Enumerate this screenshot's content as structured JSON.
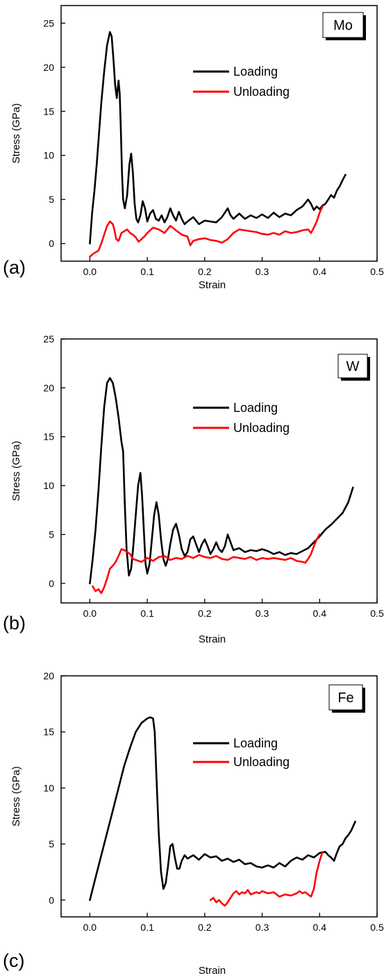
{
  "chart_data": [
    {
      "type": "line",
      "panel_label": "(a)",
      "tag": "Mo",
      "xlabel": "Strain",
      "ylabel": "Stress (GPa)",
      "xlim": [
        -0.05,
        0.5
      ],
      "ylim": [
        -2,
        27
      ],
      "xticks": [
        "0.0",
        "0.1",
        "0.2",
        "0.3",
        "0.4",
        "0.5"
      ],
      "yticks": [
        "0",
        "5",
        "10",
        "15",
        "20",
        "25"
      ],
      "legend": [
        "Loading",
        "Unloading"
      ],
      "series": [
        {
          "name": "Loading",
          "color": "#000000",
          "x": [
            0.0,
            0.004,
            0.008,
            0.012,
            0.016,
            0.02,
            0.025,
            0.03,
            0.035,
            0.038,
            0.041,
            0.044,
            0.047,
            0.05,
            0.052,
            0.054,
            0.056,
            0.058,
            0.061,
            0.065,
            0.069,
            0.072,
            0.075,
            0.078,
            0.081,
            0.084,
            0.088,
            0.092,
            0.096,
            0.1,
            0.105,
            0.11,
            0.115,
            0.12,
            0.125,
            0.13,
            0.135,
            0.14,
            0.145,
            0.15,
            0.155,
            0.16,
            0.165,
            0.17,
            0.18,
            0.19,
            0.2,
            0.21,
            0.22,
            0.23,
            0.24,
            0.245,
            0.25,
            0.26,
            0.27,
            0.28,
            0.29,
            0.3,
            0.31,
            0.32,
            0.33,
            0.34,
            0.35,
            0.36,
            0.37,
            0.38,
            0.385,
            0.39,
            0.395,
            0.4,
            0.405,
            0.41,
            0.415,
            0.42,
            0.425,
            0.43,
            0.435,
            0.44,
            0.445
          ],
          "y": [
            0.0,
            3.5,
            6.0,
            9.0,
            12.5,
            16.0,
            19.5,
            22.5,
            24.0,
            23.5,
            21.0,
            18.0,
            16.5,
            18.5,
            17.0,
            13.0,
            8.0,
            5.0,
            4.0,
            5.5,
            9.0,
            10.2,
            8.0,
            4.5,
            2.8,
            2.4,
            3.2,
            4.8,
            4.0,
            2.5,
            3.4,
            3.8,
            2.8,
            2.6,
            3.2,
            2.4,
            3.0,
            4.0,
            3.2,
            2.6,
            3.6,
            2.8,
            2.2,
            2.5,
            3.0,
            2.2,
            2.6,
            2.5,
            2.4,
            3.0,
            4.0,
            3.2,
            2.8,
            3.4,
            2.8,
            3.2,
            2.9,
            3.3,
            2.9,
            3.5,
            3.0,
            3.4,
            3.2,
            3.8,
            4.2,
            5.0,
            4.5,
            3.8,
            4.2,
            3.9,
            4.3,
            4.5,
            5.0,
            5.5,
            5.2,
            6.0,
            6.5,
            7.2,
            7.8
          ]
        },
        {
          "name": "Unloading",
          "color": "#ff0000",
          "x": [
            0.0,
            0.005,
            0.01,
            0.015,
            0.02,
            0.025,
            0.03,
            0.035,
            0.04,
            0.043,
            0.046,
            0.05,
            0.055,
            0.06,
            0.065,
            0.07,
            0.075,
            0.08,
            0.085,
            0.09,
            0.095,
            0.1,
            0.105,
            0.11,
            0.12,
            0.13,
            0.14,
            0.15,
            0.16,
            0.17,
            0.175,
            0.18,
            0.19,
            0.2,
            0.21,
            0.22,
            0.23,
            0.24,
            0.25,
            0.26,
            0.27,
            0.28,
            0.29,
            0.3,
            0.31,
            0.32,
            0.33,
            0.34,
            0.35,
            0.36,
            0.37,
            0.38,
            0.385,
            0.39,
            0.395,
            0.4,
            0.405
          ],
          "y": [
            -1.5,
            -1.2,
            -1.0,
            -0.8,
            0.0,
            1.0,
            2.0,
            2.5,
            2.2,
            1.5,
            0.5,
            0.3,
            1.2,
            1.4,
            1.6,
            1.2,
            1.0,
            0.7,
            0.2,
            0.5,
            0.8,
            1.2,
            1.5,
            1.8,
            1.6,
            1.2,
            2.0,
            1.5,
            1.0,
            0.8,
            -0.2,
            0.3,
            0.5,
            0.6,
            0.4,
            0.3,
            0.1,
            0.5,
            1.2,
            1.6,
            1.5,
            1.4,
            1.3,
            1.1,
            1.0,
            1.2,
            1.0,
            1.4,
            1.2,
            1.3,
            1.5,
            1.6,
            1.2,
            1.8,
            2.5,
            3.5,
            4.2
          ]
        }
      ]
    },
    {
      "type": "line",
      "panel_label": "(b)",
      "tag": "W",
      "xlabel": "Strain",
      "ylabel": "Stress (GPa)",
      "xlim": [
        -0.05,
        0.5
      ],
      "ylim": [
        -2,
        25
      ],
      "xticks": [
        "0.0",
        "0.1",
        "0.2",
        "0.3",
        "0.4",
        "0.5"
      ],
      "yticks": [
        "0",
        "5",
        "10",
        "15",
        "20",
        "25"
      ],
      "legend": [
        "Loading",
        "Unloading"
      ],
      "series": [
        {
          "name": "Loading",
          "color": "#000000",
          "x": [
            0.0,
            0.005,
            0.01,
            0.015,
            0.02,
            0.025,
            0.03,
            0.035,
            0.04,
            0.045,
            0.05,
            0.055,
            0.058,
            0.061,
            0.064,
            0.068,
            0.072,
            0.076,
            0.08,
            0.084,
            0.088,
            0.091,
            0.094,
            0.097,
            0.1,
            0.104,
            0.108,
            0.112,
            0.116,
            0.12,
            0.124,
            0.128,
            0.132,
            0.136,
            0.14,
            0.145,
            0.15,
            0.155,
            0.16,
            0.165,
            0.17,
            0.175,
            0.18,
            0.185,
            0.19,
            0.195,
            0.2,
            0.205,
            0.21,
            0.215,
            0.22,
            0.225,
            0.23,
            0.235,
            0.24,
            0.245,
            0.25,
            0.26,
            0.27,
            0.28,
            0.29,
            0.3,
            0.31,
            0.32,
            0.33,
            0.34,
            0.35,
            0.36,
            0.37,
            0.38,
            0.39,
            0.4,
            0.41,
            0.42,
            0.43,
            0.44,
            0.45,
            0.458
          ],
          "y": [
            0.0,
            2.5,
            5.5,
            9.5,
            14.0,
            18.0,
            20.5,
            21.0,
            20.5,
            19.0,
            17.0,
            14.5,
            13.5,
            8.0,
            3.5,
            0.8,
            1.5,
            4.0,
            7.0,
            10.0,
            11.3,
            9.0,
            5.5,
            2.0,
            1.0,
            2.0,
            4.5,
            7.0,
            8.3,
            7.0,
            4.5,
            2.5,
            1.8,
            2.5,
            4.0,
            5.5,
            6.1,
            5.0,
            3.5,
            2.8,
            3.2,
            4.5,
            4.8,
            4.0,
            3.2,
            4.0,
            4.5,
            3.8,
            3.0,
            3.5,
            4.2,
            3.5,
            3.2,
            3.8,
            5.0,
            4.2,
            3.4,
            3.6,
            3.2,
            3.4,
            3.3,
            3.5,
            3.3,
            3.0,
            3.2,
            2.9,
            3.1,
            3.0,
            3.3,
            3.6,
            4.2,
            4.8,
            5.5,
            6.0,
            6.6,
            7.2,
            8.3,
            9.8
          ]
        },
        {
          "name": "Unloading",
          "color": "#ff0000",
          "x": [
            0.005,
            0.01,
            0.015,
            0.02,
            0.025,
            0.03,
            0.035,
            0.04,
            0.045,
            0.05,
            0.055,
            0.06,
            0.065,
            0.07,
            0.075,
            0.08,
            0.09,
            0.1,
            0.11,
            0.12,
            0.13,
            0.14,
            0.15,
            0.16,
            0.17,
            0.18,
            0.19,
            0.2,
            0.21,
            0.22,
            0.23,
            0.24,
            0.25,
            0.26,
            0.27,
            0.28,
            0.29,
            0.3,
            0.31,
            0.32,
            0.33,
            0.34,
            0.35,
            0.36,
            0.37,
            0.375,
            0.38,
            0.385,
            0.39,
            0.395,
            0.4
          ],
          "y": [
            -0.3,
            -0.8,
            -0.6,
            -1.0,
            -0.4,
            0.5,
            1.5,
            1.8,
            2.2,
            2.8,
            3.5,
            3.4,
            3.2,
            3.0,
            2.5,
            2.4,
            2.2,
            2.6,
            2.3,
            2.7,
            2.8,
            2.4,
            2.6,
            2.5,
            2.8,
            2.6,
            2.9,
            2.7,
            2.6,
            2.8,
            2.5,
            2.4,
            2.7,
            2.6,
            2.5,
            2.7,
            2.4,
            2.6,
            2.5,
            2.6,
            2.5,
            2.4,
            2.6,
            2.3,
            2.2,
            2.1,
            2.5,
            3.0,
            3.8,
            4.5,
            5.0
          ]
        }
      ]
    },
    {
      "type": "line",
      "panel_label": "(c)",
      "tag": "Fe",
      "xlabel": "Strain",
      "ylabel": "Stress (GPa)",
      "xlim": [
        -0.05,
        0.5
      ],
      "ylim": [
        -1.5,
        20
      ],
      "xticks": [
        "0.0",
        "0.1",
        "0.2",
        "0.3",
        "0.4",
        "0.5"
      ],
      "yticks": [
        "0",
        "5",
        "10",
        "15",
        "20"
      ],
      "legend": [
        "Loading",
        "Unloading"
      ],
      "series": [
        {
          "name": "Loading",
          "color": "#000000",
          "x": [
            0.0,
            0.01,
            0.02,
            0.03,
            0.04,
            0.05,
            0.06,
            0.07,
            0.08,
            0.09,
            0.1,
            0.105,
            0.11,
            0.113,
            0.116,
            0.12,
            0.124,
            0.128,
            0.132,
            0.136,
            0.14,
            0.144,
            0.148,
            0.152,
            0.156,
            0.16,
            0.165,
            0.17,
            0.18,
            0.19,
            0.2,
            0.21,
            0.22,
            0.23,
            0.24,
            0.25,
            0.26,
            0.27,
            0.28,
            0.29,
            0.3,
            0.31,
            0.32,
            0.33,
            0.34,
            0.35,
            0.36,
            0.37,
            0.38,
            0.39,
            0.4,
            0.41,
            0.415,
            0.42,
            0.425,
            0.43,
            0.435,
            0.44,
            0.445,
            0.45,
            0.455,
            0.462
          ],
          "y": [
            0.0,
            2.0,
            4.0,
            6.0,
            8.0,
            10.0,
            12.0,
            13.6,
            15.0,
            15.8,
            16.2,
            16.3,
            16.2,
            15.0,
            11.0,
            6.0,
            2.5,
            1.0,
            1.5,
            3.0,
            4.8,
            5.0,
            3.8,
            2.8,
            2.8,
            3.5,
            4.0,
            3.7,
            4.0,
            3.6,
            4.1,
            3.8,
            3.9,
            3.5,
            3.7,
            3.4,
            3.6,
            3.2,
            3.3,
            3.0,
            2.9,
            3.1,
            2.9,
            3.3,
            3.0,
            3.5,
            3.8,
            3.6,
            4.0,
            3.8,
            4.2,
            4.3,
            4.0,
            3.8,
            3.5,
            4.2,
            4.8,
            5.0,
            5.5,
            5.8,
            6.2,
            7.0
          ]
        },
        {
          "name": "Unloading",
          "color": "#ff0000",
          "x": [
            0.21,
            0.215,
            0.22,
            0.225,
            0.23,
            0.235,
            0.24,
            0.245,
            0.25,
            0.255,
            0.26,
            0.265,
            0.27,
            0.275,
            0.28,
            0.285,
            0.29,
            0.295,
            0.3,
            0.31,
            0.32,
            0.33,
            0.34,
            0.35,
            0.36,
            0.365,
            0.37,
            0.375,
            0.38,
            0.385,
            0.39,
            0.395,
            0.4,
            0.405
          ],
          "y": [
            0.0,
            0.2,
            -0.2,
            0.0,
            -0.3,
            -0.5,
            -0.2,
            0.2,
            0.6,
            0.8,
            0.5,
            0.7,
            0.6,
            0.9,
            0.5,
            0.6,
            0.7,
            0.6,
            0.8,
            0.6,
            0.7,
            0.3,
            0.5,
            0.4,
            0.6,
            0.8,
            0.6,
            0.7,
            0.5,
            0.3,
            1.0,
            2.5,
            3.5,
            4.3
          ]
        }
      ]
    }
  ]
}
